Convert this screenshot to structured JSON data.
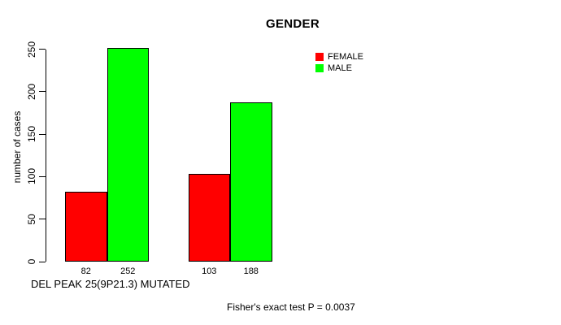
{
  "chart_data": {
    "type": "bar",
    "title": "GENDER",
    "ylabel": "number of cases",
    "xlabel": "DEL PEAK 25(9P21.3) MUTATED",
    "footer": "Fisher's exact test P = 0.0037",
    "ylim": [
      0,
      250
    ],
    "yticks": [
      0,
      50,
      100,
      150,
      200,
      250
    ],
    "grid": false,
    "groups": 2,
    "series": [
      {
        "name": "FEMALE",
        "color": "#ff0000",
        "values": [
          82,
          103
        ],
        "value_labels": [
          "82",
          "103"
        ]
      },
      {
        "name": "MALE",
        "color": "#00ff00",
        "values": [
          252,
          188
        ],
        "value_labels": [
          "252",
          "188"
        ]
      }
    ],
    "legend": {
      "position": "top-right",
      "entries": [
        {
          "label": "FEMALE",
          "color": "#ff0000"
        },
        {
          "label": "MALE",
          "color": "#00ff00"
        }
      ]
    }
  }
}
